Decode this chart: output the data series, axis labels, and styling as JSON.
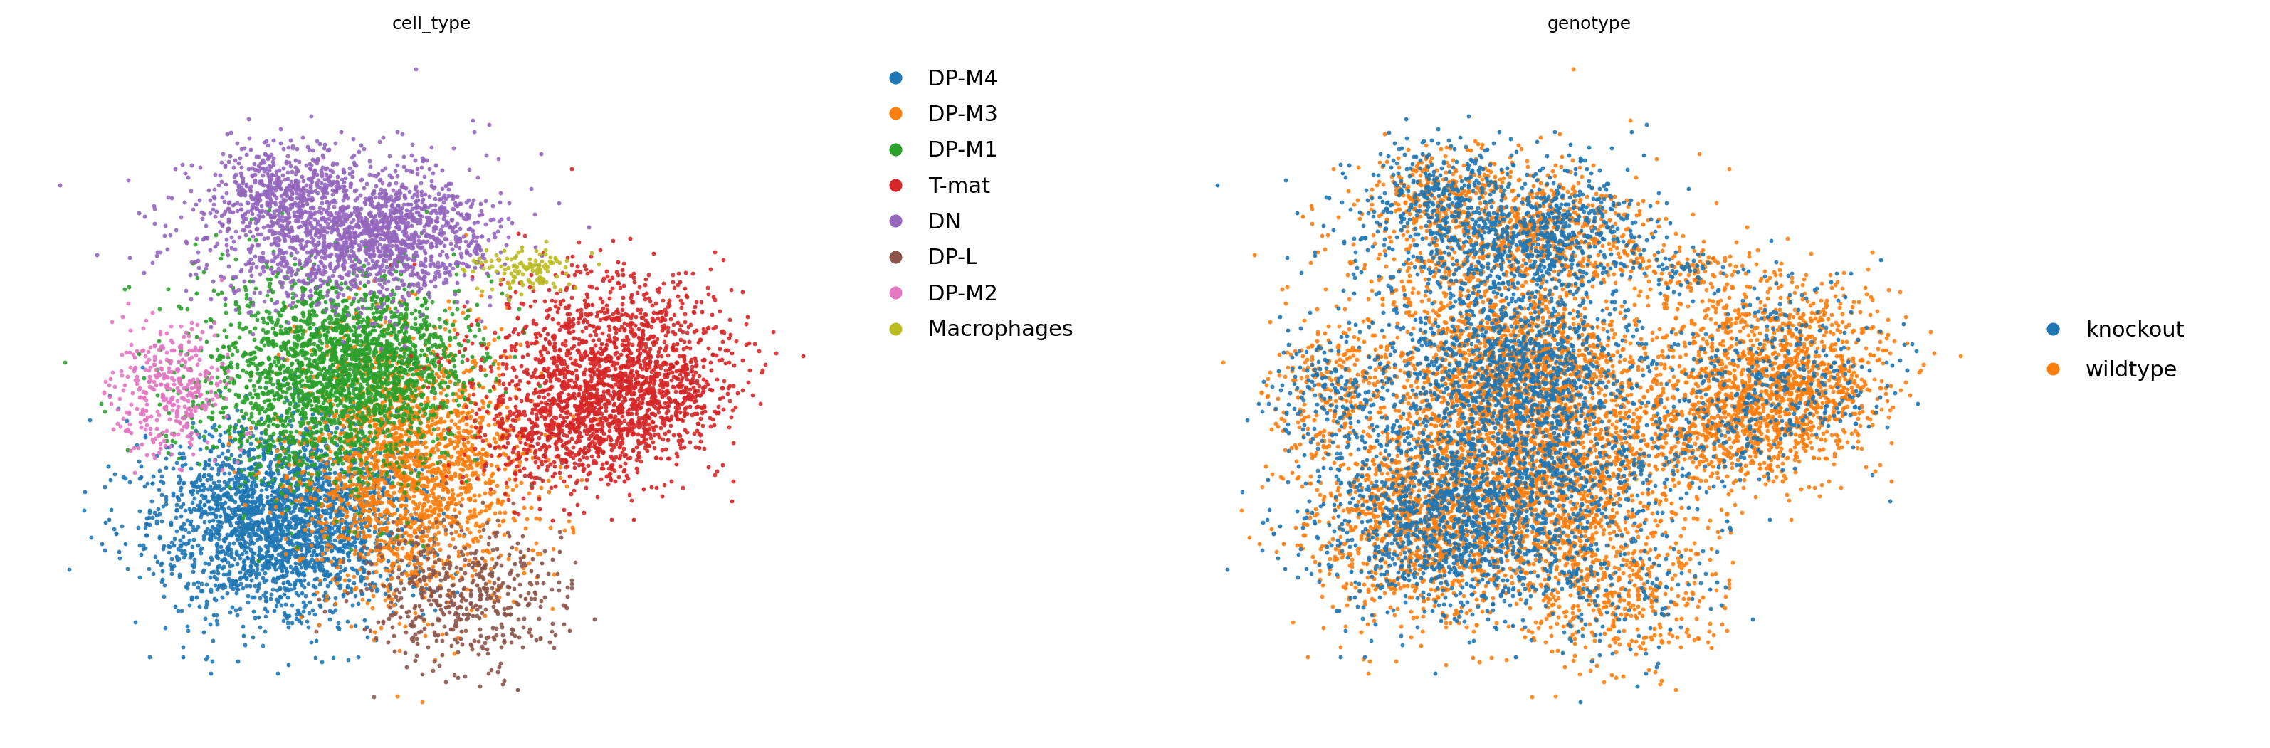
{
  "title_left": "cell_type",
  "title_right": "genotype",
  "cell_type_labels": [
    "DP-M4",
    "DP-M3",
    "DP-M1",
    "T-mat",
    "DN",
    "DP-L",
    "DP-M2",
    "Macrophages"
  ],
  "cell_type_colors": [
    "#1f77b4",
    "#ff7f0e",
    "#2ca02c",
    "#d62728",
    "#9467bd",
    "#8c564b",
    "#e377c2",
    "#bcbd22"
  ],
  "genotype_labels": [
    "knockout",
    "wildtype"
  ],
  "genotype_colors": [
    "#1f77b4",
    "#ff7f0e"
  ],
  "background_color": "#ffffff",
  "title_fontsize": 18,
  "legend_fontsize": 22,
  "marker_size": 18,
  "seed": 42
}
